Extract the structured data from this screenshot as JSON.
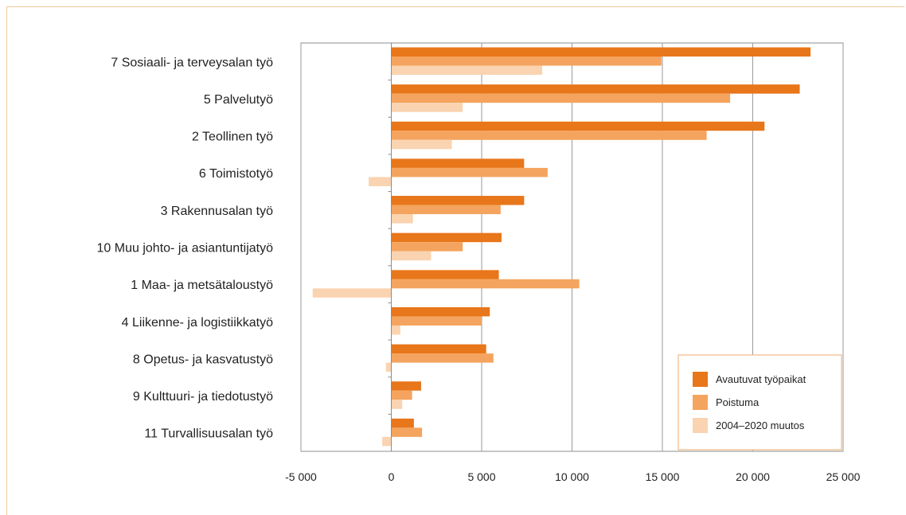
{
  "chart_data": {
    "type": "bar",
    "orientation": "horizontal",
    "categories": [
      "7 Sosiaali- ja terveysalan työ",
      "5 Palvelutyö",
      "2 Teollinen työ",
      "6 Toimistotyö",
      "3 Rakennusalan työ",
      "10 Muu johto- ja asiantuntijatyö",
      "1 Maa- ja metsätaloustyö",
      "4 Liikenne- ja logistiikkatyö",
      "8 Opetus- ja kasvatustyö",
      "9 Kulttuuri- ja tiedotustyö",
      "11 Turvallisuusalan työ"
    ],
    "series": [
      {
        "name": "Avautuvat työpaikat",
        "color": "#e8761a",
        "values": [
          23200,
          22600,
          20650,
          7350,
          7350,
          6100,
          5950,
          5450,
          5250,
          1650,
          1250
        ]
      },
      {
        "name": "Poistuma",
        "color": "#f4a45e",
        "values": [
          14950,
          18750,
          17450,
          8650,
          6050,
          3950,
          10400,
          5000,
          5650,
          1150,
          1700
        ]
      },
      {
        "name": "2004–2020 muutos",
        "color": "#fad3b0",
        "values": [
          8350,
          3950,
          3350,
          -1250,
          1200,
          2200,
          -4350,
          500,
          -300,
          600,
          -500
        ]
      }
    ],
    "xlim": [
      -5000,
      25000
    ],
    "xticks": [
      -5000,
      0,
      5000,
      10000,
      15000,
      20000,
      25000
    ],
    "xtick_labels": [
      "-5 000",
      "0",
      "5 000",
      "10 000",
      "15 000",
      "20 000",
      "25 000"
    ],
    "grid": true,
    "legend_position": "bottom-right"
  }
}
